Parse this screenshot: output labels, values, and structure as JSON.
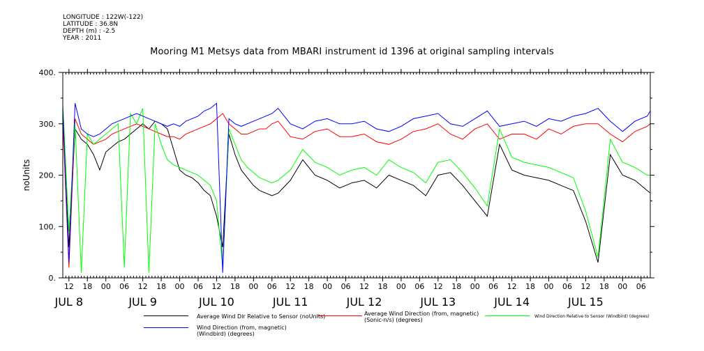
{
  "meta": {
    "longitude": "LONGITUDE : 122W(-122)",
    "latitude": "LATITUDE : 36.8N",
    "depth": "DEPTH (m) : -2.5",
    "year": "YEAR : 2011"
  },
  "chart_data": {
    "type": "line",
    "title": "Mooring M1 Metsys data from MBARI instrument id 1396 at original sampling intervals",
    "ylabel": "noUnits",
    "xlabel": "",
    "ylim": [
      0,
      400
    ],
    "yticks": [
      0,
      100,
      200,
      300,
      400
    ],
    "ytick_labels": [
      "0.",
      "100.",
      "200.",
      "300.",
      "400."
    ],
    "xlim_hours": [
      10,
      201
    ],
    "hour_ticks": [
      "12",
      "18",
      "00",
      "06",
      "12",
      "18",
      "00",
      "06",
      "12",
      "18",
      "00",
      "06",
      "12",
      "18",
      "00",
      "06",
      "12",
      "18",
      "00",
      "06",
      "12",
      "18",
      "00",
      "06",
      "12",
      "18",
      "00",
      "06",
      "12",
      "18",
      "00",
      "06"
    ],
    "day_labels": [
      "JUL  8",
      "JUL  9",
      "JUL 10",
      "JUL 11",
      "JUL 12",
      "JUL 13",
      "JUL 14",
      "JUL 15"
    ],
    "grid": false,
    "legend_position": "bottom",
    "series": [
      {
        "name": "Average Wind Dir Relative to Sensor (noUnits)",
        "color": "#000000",
        "x": [
          10,
          12,
          14,
          16,
          18,
          20,
          22,
          24,
          26,
          28,
          30,
          32,
          34,
          36,
          38,
          40,
          42,
          44,
          46,
          48,
          50,
          52,
          54,
          56,
          58,
          60,
          62,
          64,
          66,
          68,
          70,
          72,
          74,
          76,
          78,
          80,
          84,
          88,
          92,
          96,
          100,
          104,
          108,
          112,
          116,
          120,
          124,
          128,
          132,
          136,
          140,
          144,
          148,
          152,
          156,
          160,
          164,
          168,
          172,
          176,
          180,
          184,
          188,
          192,
          196,
          200,
          201
        ],
        "y": [
          310,
          60,
          290,
          270,
          260,
          240,
          210,
          245,
          255,
          265,
          270,
          280,
          290,
          300,
          290,
          305,
          300,
          290,
          250,
          210,
          200,
          195,
          185,
          170,
          160,
          120,
          60,
          280,
          240,
          210,
          195,
          180,
          170,
          165,
          160,
          165,
          190,
          230,
          200,
          190,
          175,
          185,
          190,
          175,
          200,
          190,
          180,
          160,
          200,
          205,
          180,
          150,
          120,
          260,
          210,
          200,
          195,
          190,
          180,
          170,
          110,
          30,
          240,
          200,
          190,
          170,
          165
        ]
      },
      {
        "name": "Average Wind Direction (from, magnetic) (Sonic-n/s) (degrees)",
        "color": "#ff0000",
        "x": [
          10,
          12,
          14,
          16,
          18,
          20,
          22,
          24,
          26,
          28,
          30,
          32,
          34,
          36,
          38,
          40,
          42,
          44,
          46,
          48,
          50,
          52,
          54,
          56,
          58,
          60,
          62,
          64,
          66,
          68,
          70,
          72,
          74,
          76,
          78,
          80,
          84,
          88,
          92,
          96,
          100,
          104,
          108,
          112,
          116,
          120,
          124,
          128,
          132,
          136,
          140,
          144,
          148,
          152,
          156,
          160,
          164,
          168,
          172,
          176,
          180,
          184,
          188,
          192,
          196,
          200,
          201
        ],
        "y": [
          305,
          20,
          310,
          280,
          270,
          260,
          265,
          270,
          280,
          285,
          290,
          295,
          300,
          295,
          290,
          285,
          280,
          275,
          275,
          270,
          280,
          285,
          290,
          295,
          300,
          310,
          320,
          300,
          290,
          280,
          280,
          285,
          290,
          290,
          300,
          305,
          275,
          270,
          285,
          290,
          275,
          275,
          280,
          265,
          260,
          270,
          285,
          290,
          300,
          280,
          270,
          290,
          300,
          270,
          280,
          280,
          270,
          290,
          280,
          295,
          300,
          300,
          280,
          265,
          285,
          295,
          300
        ]
      },
      {
        "name": "Wind Direction Relative to Sensor (Windbird) (degrees)",
        "color": "#00ff00",
        "x": [
          10,
          12,
          14,
          16,
          18,
          20,
          22,
          24,
          26,
          28,
          30,
          32,
          34,
          36,
          38,
          40,
          42,
          44,
          46,
          48,
          50,
          52,
          54,
          56,
          58,
          60,
          62,
          64,
          66,
          68,
          70,
          72,
          74,
          76,
          78,
          80,
          84,
          88,
          92,
          96,
          100,
          104,
          108,
          112,
          116,
          120,
          124,
          128,
          132,
          136,
          140,
          144,
          148,
          152,
          156,
          160,
          164,
          168,
          172,
          176,
          180,
          184,
          188,
          192,
          196,
          200,
          201
        ],
        "y": [
          340,
          90,
          300,
          10,
          280,
          260,
          270,
          280,
          290,
          300,
          20,
          320,
          300,
          330,
          10,
          300,
          260,
          230,
          220,
          215,
          210,
          205,
          200,
          190,
          180,
          150,
          20,
          290,
          260,
          230,
          215,
          205,
          195,
          190,
          185,
          190,
          210,
          250,
          225,
          215,
          200,
          210,
          215,
          200,
          230,
          215,
          205,
          185,
          225,
          230,
          205,
          175,
          140,
          290,
          235,
          225,
          220,
          215,
          205,
          195,
          130,
          40,
          270,
          225,
          215,
          200,
          200
        ]
      },
      {
        "name": "Wind Direction (from, magnetic) (Windbird) (degrees)",
        "color": "#0000ff",
        "x": [
          10,
          12,
          14,
          16,
          18,
          20,
          22,
          24,
          26,
          28,
          30,
          32,
          34,
          36,
          38,
          40,
          42,
          44,
          46,
          48,
          50,
          52,
          54,
          56,
          58,
          60,
          62,
          64,
          66,
          68,
          70,
          72,
          74,
          76,
          78,
          80,
          84,
          88,
          92,
          96,
          100,
          104,
          108,
          112,
          116,
          120,
          124,
          128,
          132,
          136,
          140,
          144,
          148,
          152,
          156,
          160,
          164,
          168,
          172,
          176,
          180,
          184,
          188,
          192,
          196,
          200,
          201
        ],
        "y": [
          330,
          30,
          340,
          290,
          280,
          275,
          280,
          290,
          300,
          305,
          310,
          315,
          320,
          315,
          310,
          305,
          300,
          295,
          300,
          295,
          305,
          310,
          315,
          325,
          330,
          340,
          10,
          310,
          300,
          295,
          300,
          305,
          310,
          315,
          320,
          330,
          300,
          290,
          305,
          310,
          300,
          300,
          305,
          290,
          285,
          295,
          310,
          315,
          320,
          300,
          295,
          310,
          325,
          295,
          300,
          305,
          295,
          310,
          305,
          315,
          320,
          330,
          305,
          285,
          305,
          315,
          325
        ]
      }
    ]
  }
}
